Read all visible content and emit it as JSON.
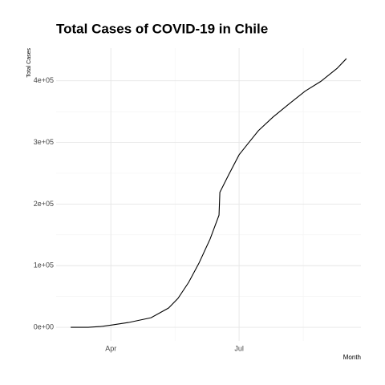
{
  "chart_data": {
    "type": "line",
    "title": "Total Cases of COVID-19 in Chile",
    "x_label": "Month",
    "y_label": "Total Cases",
    "x": [
      3.06,
      3.47,
      3.76,
      4.04,
      4.41,
      4.94,
      5.35,
      5.57,
      5.82,
      6.06,
      6.32,
      6.53,
      6.55,
      6.76,
      7.0,
      7.23,
      7.45,
      7.79,
      8.16,
      8.54,
      8.91,
      9.29,
      9.51
    ],
    "series": [
      {
        "name": "Total Cases",
        "color": "#000000",
        "values": [
          0,
          0,
          1300,
          3900,
          7800,
          15600,
          31300,
          46900,
          73000,
          104000,
          143000,
          182000,
          219000,
          248000,
          280000,
          300000,
          319000,
          341000,
          362000,
          383000,
          399000,
          420000,
          436000
        ]
      }
    ],
    "xlim": [
      2.72,
      9.85
    ],
    "xticks": [
      {
        "value": 4,
        "label": "Apr"
      },
      {
        "value": 7,
        "label": "Jul"
      }
    ],
    "xminor": [
      5.5,
      8.5
    ],
    "ylim": [
      -22000,
      453000
    ],
    "yticks": [
      {
        "value": 0,
        "label": "0e+00"
      },
      {
        "value": 100000,
        "label": "1e+05"
      },
      {
        "value": 200000,
        "label": "2e+05"
      },
      {
        "value": 300000,
        "label": "3e+05"
      },
      {
        "value": 400000,
        "label": "4e+05"
      }
    ],
    "yminor": [
      50000,
      150000,
      250000,
      350000
    ],
    "grid": true
  }
}
